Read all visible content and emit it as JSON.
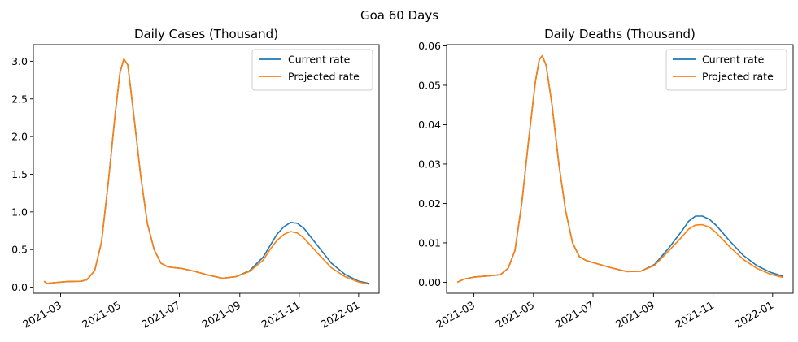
{
  "figure": {
    "suptitle": "Goa 60 Days"
  },
  "colors": {
    "current": "#1f77b4",
    "projected": "#ff7f0e"
  },
  "chart_data": [
    {
      "type": "line",
      "title": "Daily Cases (Thousand)",
      "xlabel": "",
      "ylabel": "",
      "ylim": [
        -0.08,
        3.22
      ],
      "xlim": [
        "2021-02-01",
        "2022-01-22"
      ],
      "yticks": [
        0.0,
        0.5,
        1.0,
        1.5,
        2.0,
        2.5,
        3.0
      ],
      "ytick_labels": [
        "0.0",
        "0.5",
        "1.0",
        "1.5",
        "2.0",
        "2.5",
        "3.0"
      ],
      "xticks": [
        "2021-03-01",
        "2021-05-01",
        "2021-07-01",
        "2021-09-01",
        "2021-11-01",
        "2022-01-01"
      ],
      "xtick_labels": [
        "2021-03",
        "2021-05",
        "2021-07",
        "2021-09",
        "2021-11",
        "2022-01"
      ],
      "grid": false,
      "legend_position": "top-right",
      "series": [
        {
          "name": "Current rate",
          "x": [
            "2021-02-12",
            "2021-02-15",
            "2021-02-22",
            "2021-03-08",
            "2021-03-22",
            "2021-03-28",
            "2021-04-05",
            "2021-04-12",
            "2021-04-19",
            "2021-04-26",
            "2021-05-01",
            "2021-05-05",
            "2021-05-09",
            "2021-05-15",
            "2021-05-22",
            "2021-05-29",
            "2021-06-05",
            "2021-06-12",
            "2021-06-19",
            "2021-07-03",
            "2021-07-17",
            "2021-07-31",
            "2021-08-14",
            "2021-08-28",
            "2021-09-11",
            "2021-09-25",
            "2021-10-02",
            "2021-10-09",
            "2021-10-16",
            "2021-10-23",
            "2021-10-30",
            "2021-11-06",
            "2021-11-20",
            "2021-12-04",
            "2021-12-18",
            "2022-01-01",
            "2022-01-12"
          ],
          "y": [
            0.08,
            0.05,
            0.06,
            0.075,
            0.08,
            0.1,
            0.22,
            0.6,
            1.4,
            2.3,
            2.85,
            3.03,
            2.95,
            2.3,
            1.5,
            0.85,
            0.5,
            0.32,
            0.27,
            0.25,
            0.21,
            0.16,
            0.12,
            0.14,
            0.22,
            0.4,
            0.55,
            0.7,
            0.8,
            0.86,
            0.85,
            0.78,
            0.55,
            0.32,
            0.17,
            0.08,
            0.05
          ]
        },
        {
          "name": "Projected rate",
          "x": [
            "2021-02-12",
            "2021-02-15",
            "2021-02-22",
            "2021-03-08",
            "2021-03-22",
            "2021-03-28",
            "2021-04-05",
            "2021-04-12",
            "2021-04-19",
            "2021-04-26",
            "2021-05-01",
            "2021-05-05",
            "2021-05-09",
            "2021-05-15",
            "2021-05-22",
            "2021-05-29",
            "2021-06-05",
            "2021-06-12",
            "2021-06-19",
            "2021-07-03",
            "2021-07-17",
            "2021-07-31",
            "2021-08-14",
            "2021-08-28",
            "2021-09-11",
            "2021-09-25",
            "2021-10-02",
            "2021-10-09",
            "2021-10-16",
            "2021-10-23",
            "2021-10-30",
            "2021-11-06",
            "2021-11-20",
            "2021-12-04",
            "2021-12-18",
            "2022-01-01",
            "2022-01-12"
          ],
          "y": [
            0.08,
            0.05,
            0.06,
            0.075,
            0.08,
            0.1,
            0.22,
            0.6,
            1.4,
            2.3,
            2.85,
            3.03,
            2.95,
            2.3,
            1.5,
            0.85,
            0.5,
            0.32,
            0.27,
            0.25,
            0.21,
            0.16,
            0.12,
            0.14,
            0.21,
            0.36,
            0.5,
            0.62,
            0.7,
            0.74,
            0.72,
            0.65,
            0.45,
            0.26,
            0.14,
            0.07,
            0.04
          ]
        }
      ]
    },
    {
      "type": "line",
      "title": "Daily Deaths (Thousand)",
      "xlabel": "",
      "ylabel": "",
      "ylim": [
        -0.0028,
        0.0603
      ],
      "xlim": [
        "2021-02-01",
        "2022-01-22"
      ],
      "yticks": [
        0.0,
        0.01,
        0.02,
        0.03,
        0.04,
        0.05,
        0.06
      ],
      "ytick_labels": [
        "0.00",
        "0.01",
        "0.02",
        "0.03",
        "0.04",
        "0.05",
        "0.06"
      ],
      "xticks": [
        "2021-03-01",
        "2021-05-01",
        "2021-07-01",
        "2021-09-01",
        "2021-11-01",
        "2022-01-01"
      ],
      "xtick_labels": [
        "2021-03",
        "2021-05",
        "2021-07",
        "2021-09",
        "2021-11",
        "2022-01"
      ],
      "grid": false,
      "legend_position": "top-right",
      "series": [
        {
          "name": "Current rate",
          "x": [
            "2021-02-12",
            "2021-02-19",
            "2021-03-01",
            "2021-03-15",
            "2021-03-28",
            "2021-04-05",
            "2021-04-12",
            "2021-04-19",
            "2021-04-26",
            "2021-05-03",
            "2021-05-07",
            "2021-05-10",
            "2021-05-14",
            "2021-05-20",
            "2021-05-27",
            "2021-06-03",
            "2021-06-10",
            "2021-06-17",
            "2021-06-24",
            "2021-07-08",
            "2021-07-22",
            "2021-08-05",
            "2021-08-19",
            "2021-09-02",
            "2021-09-16",
            "2021-09-30",
            "2021-10-07",
            "2021-10-14",
            "2021-10-21",
            "2021-10-28",
            "2021-11-04",
            "2021-11-18",
            "2021-12-02",
            "2021-12-16",
            "2021-12-30",
            "2022-01-12"
          ],
          "y": [
            0.0,
            0.0008,
            0.0013,
            0.0016,
            0.0019,
            0.0035,
            0.008,
            0.02,
            0.036,
            0.051,
            0.0565,
            0.0575,
            0.055,
            0.045,
            0.03,
            0.018,
            0.01,
            0.0065,
            0.0055,
            0.0045,
            0.0035,
            0.0027,
            0.0028,
            0.0045,
            0.0085,
            0.013,
            0.0155,
            0.0168,
            0.0168,
            0.016,
            0.0145,
            0.0105,
            0.0068,
            0.0042,
            0.0025,
            0.0015
          ]
        },
        {
          "name": "Projected rate",
          "x": [
            "2021-02-12",
            "2021-02-19",
            "2021-03-01",
            "2021-03-15",
            "2021-03-28",
            "2021-04-05",
            "2021-04-12",
            "2021-04-19",
            "2021-04-26",
            "2021-05-03",
            "2021-05-07",
            "2021-05-10",
            "2021-05-14",
            "2021-05-20",
            "2021-05-27",
            "2021-06-03",
            "2021-06-10",
            "2021-06-17",
            "2021-06-24",
            "2021-07-08",
            "2021-07-22",
            "2021-08-05",
            "2021-08-19",
            "2021-09-02",
            "2021-09-16",
            "2021-09-30",
            "2021-10-07",
            "2021-10-14",
            "2021-10-21",
            "2021-10-28",
            "2021-11-04",
            "2021-11-18",
            "2021-12-02",
            "2021-12-16",
            "2021-12-30",
            "2022-01-12"
          ],
          "y": [
            0.0,
            0.0008,
            0.0013,
            0.0016,
            0.0019,
            0.0035,
            0.008,
            0.02,
            0.036,
            0.051,
            0.0565,
            0.0575,
            0.055,
            0.045,
            0.03,
            0.018,
            0.01,
            0.0065,
            0.0055,
            0.0045,
            0.0035,
            0.0027,
            0.0028,
            0.0043,
            0.0078,
            0.0115,
            0.0135,
            0.0145,
            0.0146,
            0.014,
            0.0126,
            0.009,
            0.0058,
            0.0035,
            0.002,
            0.0012
          ]
        }
      ]
    }
  ]
}
